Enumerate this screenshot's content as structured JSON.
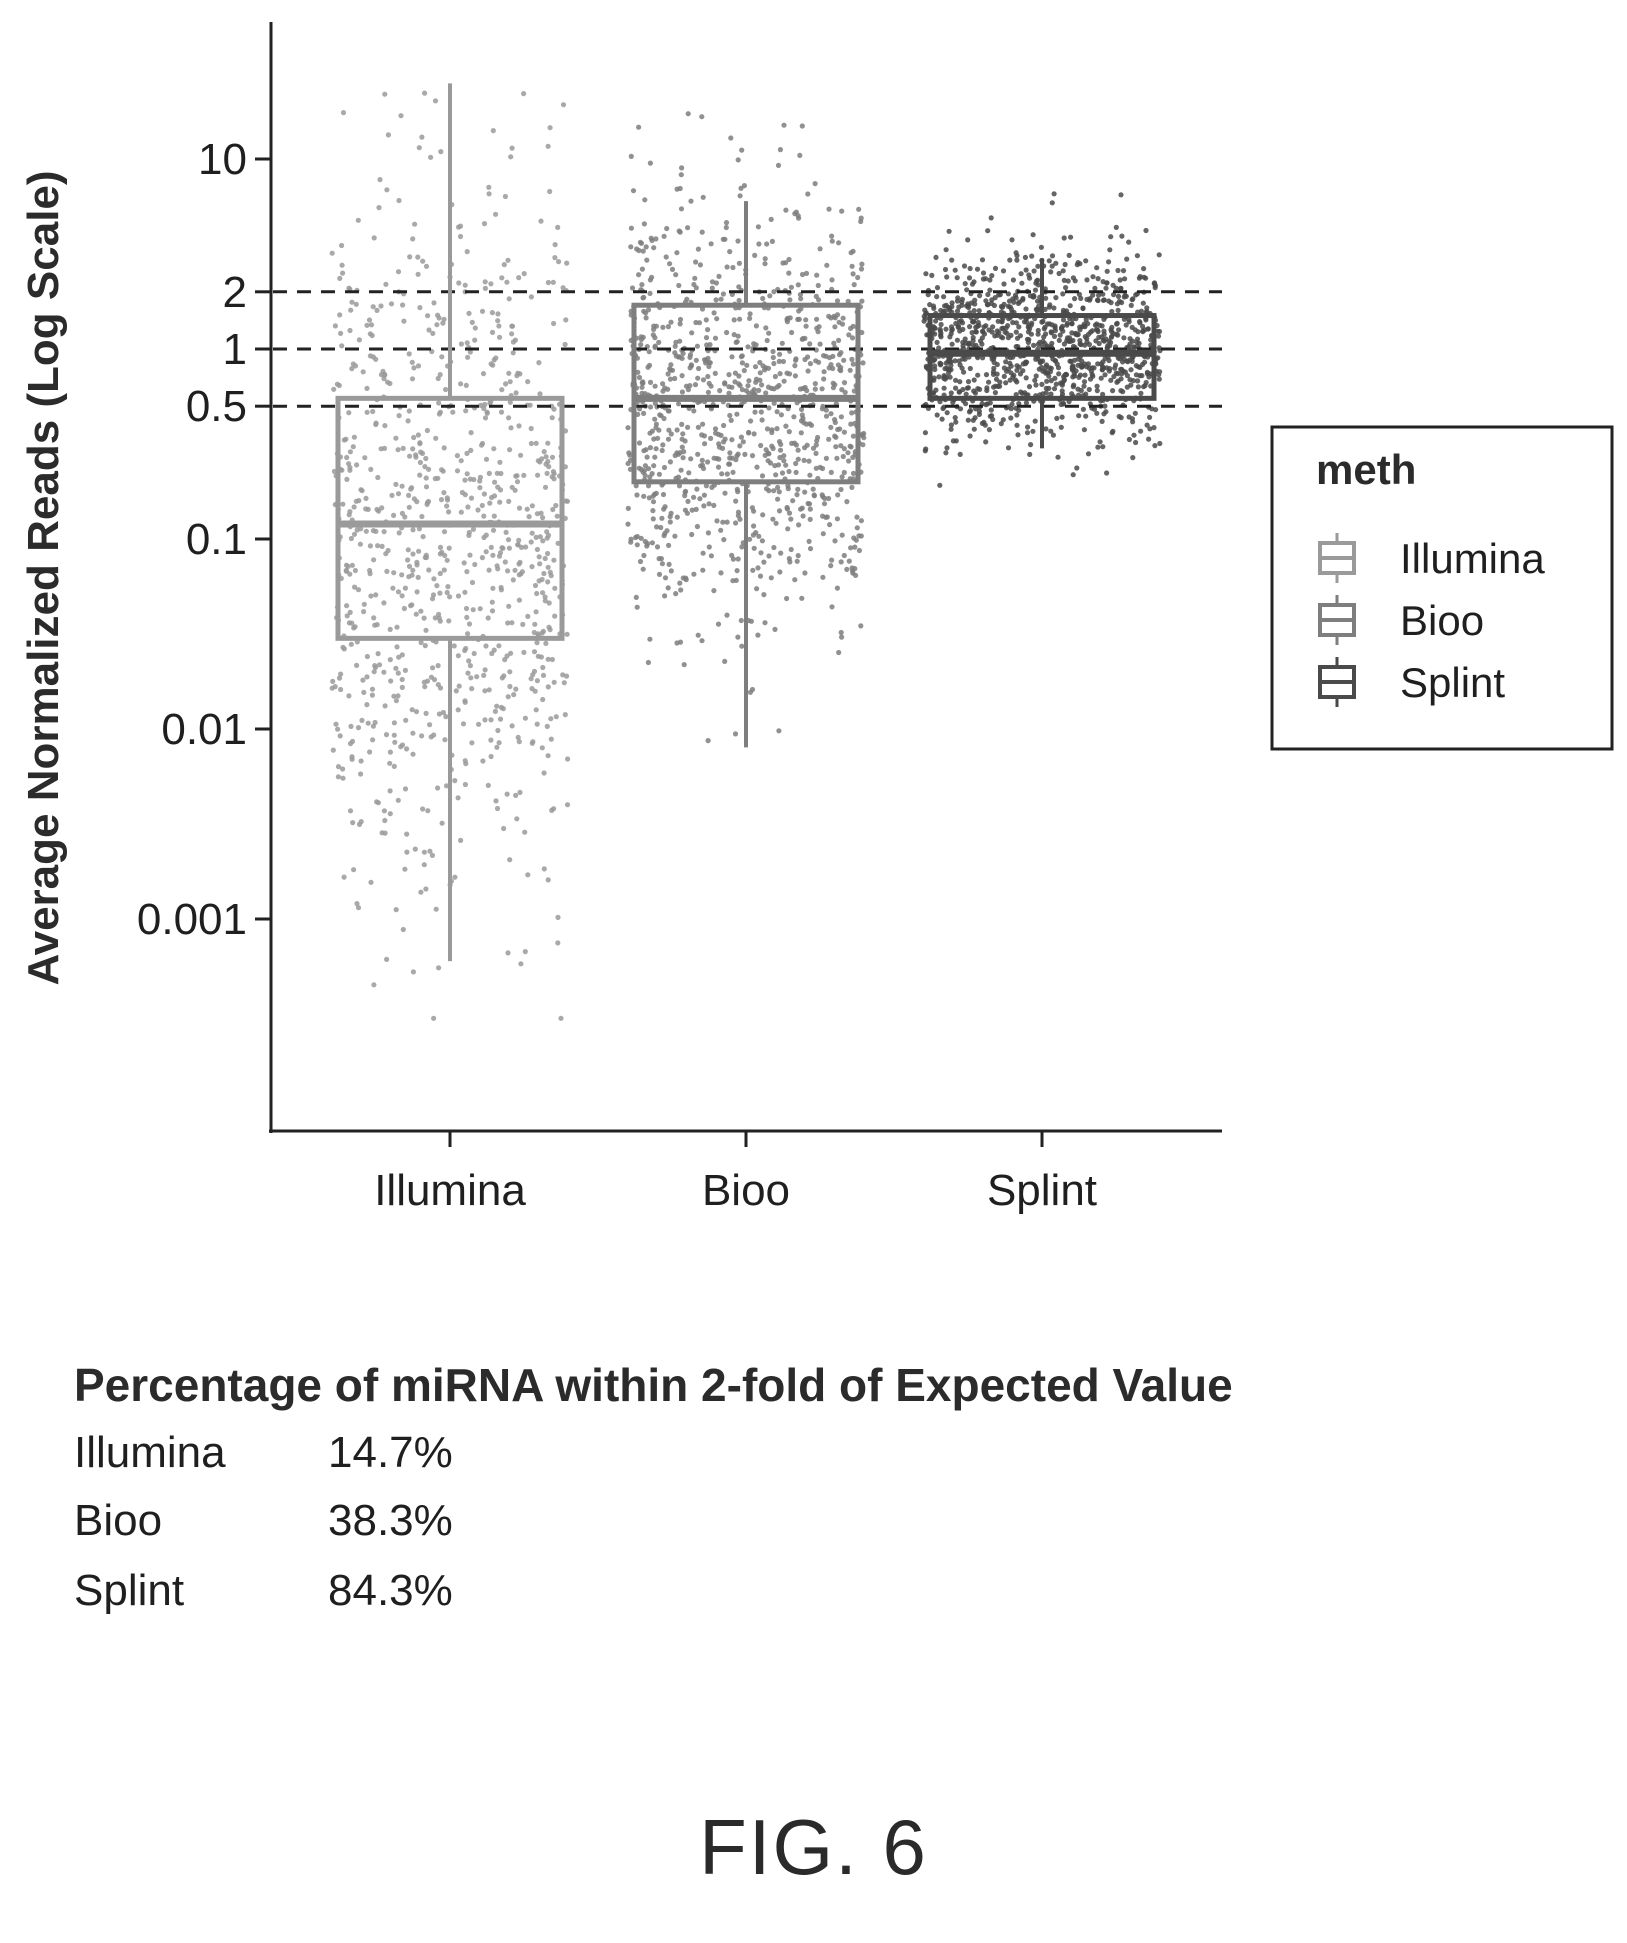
{
  "chart_data": {
    "type": "box-jitter",
    "ylabel": "Average Normalized Reads (Log Scale)",
    "y_scale": "log10",
    "ylim": [
      0.0001,
      40
    ],
    "yticks": [
      {
        "value": 10,
        "label": "10"
      },
      {
        "value": 2,
        "label": "2"
      },
      {
        "value": 1,
        "label": "1"
      },
      {
        "value": 0.5,
        "label": "0.5"
      },
      {
        "value": 0.1,
        "label": "0.1"
      },
      {
        "value": 0.01,
        "label": "0.01"
      },
      {
        "value": 0.001,
        "label": "0.001"
      }
    ],
    "reference_lines": [
      2,
      1,
      0.5
    ],
    "categories": [
      "Illumina",
      "Bioo",
      "Splint"
    ],
    "series": [
      {
        "name": "Illumina",
        "color": "#9a9a9a",
        "box": {
          "q1": 0.03,
          "median": 0.12,
          "q3": 0.55,
          "whisker_low": 0.0006,
          "whisker_high": 25
        },
        "points_log_center": -1.0,
        "points_log_spread": 0.9,
        "points_count": 900
      },
      {
        "name": "Bioo",
        "color": "#7e7e7e",
        "box": {
          "q1": 0.2,
          "median": 0.55,
          "q3": 1.7,
          "whisker_low": 0.008,
          "whisker_high": 6
        },
        "points_log_center": -0.3,
        "points_log_spread": 0.55,
        "points_count": 1000
      },
      {
        "name": "Splint",
        "color": "#4a4a4a",
        "box": {
          "q1": 0.55,
          "median": 0.95,
          "q3": 1.5,
          "whisker_low": 0.3,
          "whisker_high": 3
        },
        "points_log_center": 0.0,
        "points_log_spread": 0.25,
        "points_count": 1100
      }
    ],
    "legend": {
      "title": "meth",
      "position": "right",
      "entries": [
        "Illumina",
        "Bioo",
        "Splint"
      ]
    },
    "grid": false
  },
  "table": {
    "title": "Percentage of miRNA within 2-fold of Expected Value",
    "rows": [
      {
        "method": "Illumina",
        "value": "14.7%"
      },
      {
        "method": "Bioo",
        "value": "38.3%"
      },
      {
        "method": "Splint",
        "value": "84.3%"
      }
    ]
  },
  "figure_label": "FIG. 6"
}
